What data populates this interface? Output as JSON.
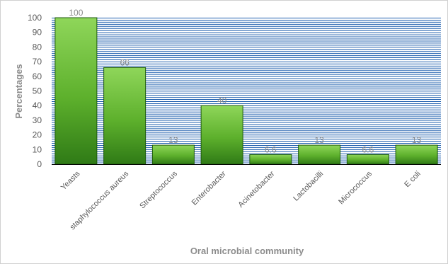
{
  "chart_data": {
    "type": "bar",
    "categories": [
      "Yeasts",
      "staphylococcus aureus",
      "Streptococcus",
      "Enterobacter",
      "Acinetobacter",
      "Lactobacilli",
      "Micrococcus",
      "E coli"
    ],
    "values": [
      100,
      66,
      13,
      40,
      6.6,
      13,
      6.6,
      13
    ],
    "value_labels": [
      "100",
      "66",
      "13",
      "40",
      "6.6",
      "13",
      "6.6",
      "13"
    ],
    "title": "",
    "xlabel": "Oral microbial community",
    "ylabel": "Percentages",
    "ylim": [
      0,
      100
    ],
    "yticks": [
      0,
      10,
      20,
      30,
      40,
      50,
      60,
      70,
      80,
      90,
      100
    ],
    "grid": true,
    "legend": "none",
    "colors": {
      "bar_light": "#8fd65a",
      "bar_mid": "#5db02c",
      "bar_dark": "#2f7a16",
      "bar_edge": "#1e5a0c",
      "grid_line": "#1f5fae",
      "axis_line": "#000000"
    }
  }
}
